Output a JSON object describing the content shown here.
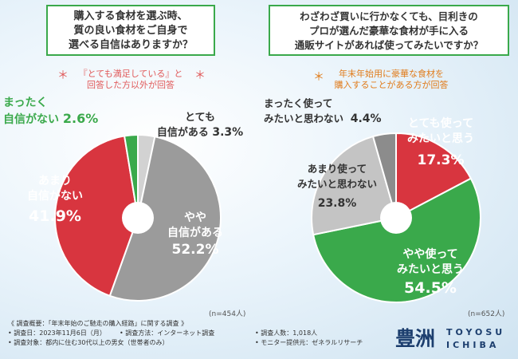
{
  "chart_data": [
    {
      "type": "pie",
      "title": "購入する食材を選ぶ時、質の良い食材をご自身で選べる自信はありますか？",
      "title_lines": [
        "購入する食材を選ぶ時、",
        "質の良い食材をご自身で",
        "選べる自信はありますか？"
      ],
      "note_lines": [
        "『とても満足している』と",
        "回答した方以外が回答"
      ],
      "n_label": "(n=454人)",
      "slices": [
        {
          "label": "とても自信がある",
          "label_lines": [
            "とても",
            "自信がある"
          ],
          "value": 3.3,
          "pct_label": "3.3%",
          "color": "#d2d2d2"
        },
        {
          "label": "やや自信がある",
          "label_lines": [
            "やや",
            "自信がある"
          ],
          "value": 52.2,
          "pct_label": "52.2%",
          "color": "#9b9b9b"
        },
        {
          "label": "あまり自信がない",
          "label_lines": [
            "あまり",
            "自信がない"
          ],
          "value": 41.9,
          "pct_label": "41.9%",
          "color": "#d8353f"
        },
        {
          "label": "まったく自信がない",
          "label_lines": [
            "まったく",
            "自信がない"
          ],
          "value": 2.6,
          "pct_label": "2.6%",
          "color": "#3aa94b"
        }
      ]
    },
    {
      "type": "pie",
      "title": "わざわざ買いに行かなくても、目利きのプロが選んだ豪華な食材が手に入る通販サイトがあれば使ってみたいですか？",
      "title_lines": [
        "わざわざ買いに行かなくても、目利きの",
        "プロが選んだ豪華な食材が手に入る",
        "通販サイトがあれば使ってみたいですか？"
      ],
      "note_lines": [
        "年末年始用に豪華な食材を",
        "購入することがある方が回答"
      ],
      "n_label": "(n=652人)",
      "slices": [
        {
          "label": "とても使ってみたいと思う",
          "label_lines": [
            "とても使って",
            "みたいと思う"
          ],
          "value": 17.3,
          "pct_label": "17.3%",
          "color": "#d8353f"
        },
        {
          "label": "やや使ってみたいと思う",
          "label_lines": [
            "やや使って",
            "みたいと思う"
          ],
          "value": 54.5,
          "pct_label": "54.5%",
          "color": "#3aa94b"
        },
        {
          "label": "あまり使ってみたいと思わない",
          "label_lines": [
            "あまり使って",
            "みたいと思わない"
          ],
          "value": 23.8,
          "pct_label": "23.8%",
          "color": "#c4c4c4"
        },
        {
          "label": "まったく使ってみたいと思わない",
          "label_lines": [
            "まったく使って",
            "みたいと思わない"
          ],
          "value": 4.4,
          "pct_label": "4.4%",
          "color": "#8c8c8c"
        }
      ]
    }
  ],
  "colors": {
    "accent_green": "#3aa94b",
    "accent_red": "#d8353f",
    "note_red": "#e05a5a",
    "note_orange": "#e07b1a"
  },
  "footer": {
    "title": "《 調査概要：「年末年始のご馳走の購入経路」に関する調査 》",
    "date": "• 調査日：2023年11月6日（月）",
    "method": "• 調査方法：インターネット調査",
    "count": "• 調査人数：1,018人",
    "target": "• 調査対象：都内に住む30代以上の男女（世帯者のみ）",
    "provider": "• モニター提供元：ゼネラルリサーチ"
  },
  "logo": {
    "kanji": "豊洲",
    "line1": "TOYOSU",
    "line2": "ICHIBA"
  }
}
